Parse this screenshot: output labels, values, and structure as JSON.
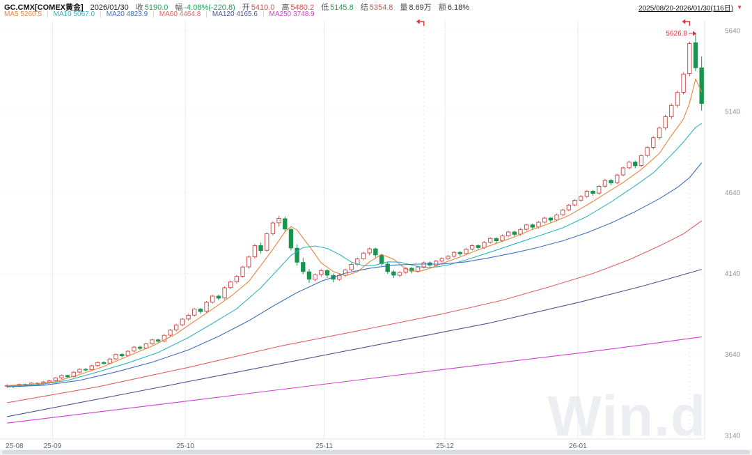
{
  "header": {
    "symbol": "GC.CMX[COMEX黄金]",
    "date": "2026/01/30",
    "stats": [
      {
        "label": "收",
        "value": "5190.0",
        "color": "#1ba554"
      },
      {
        "label": "幅",
        "value": "-4.08%(-220.8)",
        "color": "#1ba554"
      },
      {
        "label": "开",
        "value": "5410.0",
        "color": "#d94f4f"
      },
      {
        "label": "高",
        "value": "5480.2",
        "color": "#d94f4f"
      },
      {
        "label": "低",
        "value": "5145.8",
        "color": "#1ba554"
      },
      {
        "label": "结",
        "value": "5354.8",
        "color": "#d94f4f"
      },
      {
        "label": "量",
        "value": "8.69万",
        "color": "#333333"
      },
      {
        "label": "额",
        "value": "6.18%",
        "color": "#333333"
      }
    ],
    "range_selector": {
      "label": "2025/08/20-2026/01/30(116日)"
    },
    "ma_legend": [
      {
        "label": "MA5",
        "value": "5260.5",
        "color": "#e8843c"
      },
      {
        "label": "MA10",
        "value": "5067.0",
        "color": "#2fb3c4"
      },
      {
        "label": "MA20",
        "value": "4823.9",
        "color": "#3e6fbe"
      },
      {
        "label": "MA60",
        "value": "4464.8",
        "color": "#e06060"
      },
      {
        "label": "MA120",
        "value": "4165.6",
        "color": "#4a5490"
      },
      {
        "label": "MA250",
        "value": "3748.9",
        "color": "#cc3fcc"
      }
    ]
  },
  "watermark": "Win.d",
  "chart_data": {
    "type": "candlestick",
    "ylim": [
      3118,
      5700
    ],
    "y_ticks": [
      5640,
      5140,
      4640,
      4140,
      3640,
      3140
    ],
    "x_ticks": [
      {
        "index": 0,
        "label": "25-08"
      },
      {
        "index": 8,
        "label": "25-09"
      },
      {
        "index": 30,
        "label": "25-10"
      },
      {
        "index": 53,
        "label": "25-11"
      },
      {
        "index": 73,
        "label": "25-12"
      },
      {
        "index": 95,
        "label": "26-01"
      }
    ],
    "up_color": "#d0504e",
    "down_color": "#17944e",
    "grid_color": "#e7e9ec",
    "peak_annotation": {
      "text": "5626.8",
      "index": 114,
      "price": 5626.8,
      "color": "#e03030"
    },
    "rollover_marker_indices": [
      69,
      113
    ],
    "candles": [
      [
        3446,
        3456,
        3434,
        3448
      ],
      [
        3448,
        3452,
        3432,
        3442
      ],
      [
        3443,
        3460,
        3438,
        3455
      ],
      [
        3455,
        3461,
        3442,
        3450
      ],
      [
        3451,
        3469,
        3446,
        3463
      ],
      [
        3462,
        3468,
        3450,
        3458
      ],
      [
        3459,
        3476,
        3452,
        3470
      ],
      [
        3470,
        3484,
        3464,
        3478
      ],
      [
        3479,
        3500,
        3472,
        3495
      ],
      [
        3496,
        3516,
        3488,
        3510
      ],
      [
        3510,
        3515,
        3494,
        3502
      ],
      [
        3503,
        3536,
        3498,
        3530
      ],
      [
        3531,
        3554,
        3524,
        3548
      ],
      [
        3548,
        3556,
        3536,
        3545
      ],
      [
        3546,
        3576,
        3540,
        3570
      ],
      [
        3571,
        3596,
        3564,
        3590
      ],
      [
        3590,
        3597,
        3576,
        3585
      ],
      [
        3586,
        3618,
        3580,
        3612
      ],
      [
        3613,
        3646,
        3606,
        3640
      ],
      [
        3640,
        3648,
        3622,
        3632
      ],
      [
        3633,
        3666,
        3626,
        3660
      ],
      [
        3661,
        3692,
        3654,
        3685
      ],
      [
        3685,
        3694,
        3668,
        3678
      ],
      [
        3679,
        3712,
        3672,
        3705
      ],
      [
        3706,
        3737,
        3698,
        3730
      ],
      [
        3730,
        3738,
        3710,
        3722
      ],
      [
        3723,
        3765,
        3716,
        3758
      ],
      [
        3759,
        3797,
        3750,
        3790
      ],
      [
        3791,
        3829,
        3782,
        3822
      ],
      [
        3823,
        3865,
        3814,
        3858
      ],
      [
        3859,
        3890,
        3850,
        3882
      ],
      [
        3883,
        3928,
        3874,
        3920
      ],
      [
        3920,
        3928,
        3892,
        3905
      ],
      [
        3906,
        3970,
        3898,
        3962
      ],
      [
        3963,
        4008,
        3954,
        4000
      ],
      [
        4000,
        4010,
        3976,
        3988
      ],
      [
        3989,
        4060,
        3980,
        4052
      ],
      [
        4053,
        4096,
        4044,
        4088
      ],
      [
        4089,
        4130,
        4078,
        4122
      ],
      [
        4123,
        4188,
        4114,
        4180
      ],
      [
        4181,
        4250,
        4170,
        4242
      ],
      [
        4243,
        4322,
        4232,
        4312
      ],
      [
        4312,
        4330,
        4264,
        4282
      ],
      [
        4283,
        4394,
        4274,
        4385
      ],
      [
        4386,
        4462,
        4375,
        4452
      ],
      [
        4453,
        4496,
        4430,
        4480
      ],
      [
        4478,
        4492,
        4396,
        4415
      ],
      [
        4412,
        4420,
        4282,
        4298
      ],
      [
        4296,
        4320,
        4188,
        4210
      ],
      [
        4208,
        4238,
        4136,
        4152
      ],
      [
        4150,
        4168,
        4082,
        4105
      ],
      [
        4104,
        4140,
        4092,
        4132
      ],
      [
        4133,
        4168,
        4120,
        4158
      ],
      [
        4158,
        4166,
        4112,
        4130
      ],
      [
        4128,
        4140,
        4086,
        4105
      ],
      [
        4104,
        4136,
        4095,
        4128
      ],
      [
        4129,
        4170,
        4120,
        4162
      ],
      [
        4163,
        4204,
        4154,
        4196
      ],
      [
        4197,
        4238,
        4188,
        4230
      ],
      [
        4231,
        4274,
        4222,
        4266
      ],
      [
        4267,
        4300,
        4252,
        4292
      ],
      [
        4292,
        4300,
        4240,
        4255
      ],
      [
        4254,
        4262,
        4186,
        4200
      ],
      [
        4198,
        4210,
        4138,
        4152
      ],
      [
        4150,
        4162,
        4112,
        4130
      ],
      [
        4129,
        4154,
        4118,
        4146
      ],
      [
        4147,
        4180,
        4138,
        4172
      ],
      [
        4172,
        4180,
        4140,
        4155
      ],
      [
        4154,
        4188,
        4146,
        4180
      ],
      [
        4181,
        4214,
        4172,
        4206
      ],
      [
        4206,
        4214,
        4178,
        4192
      ],
      [
        4191,
        4224,
        4182,
        4216
      ],
      [
        4217,
        4240,
        4208,
        4232
      ],
      [
        4232,
        4254,
        4222,
        4246
      ],
      [
        4247,
        4278,
        4238,
        4270
      ],
      [
        4270,
        4278,
        4248,
        4262
      ],
      [
        4263,
        4298,
        4254,
        4290
      ],
      [
        4291,
        4320,
        4282,
        4312
      ],
      [
        4312,
        4320,
        4288,
        4300
      ],
      [
        4301,
        4340,
        4292,
        4332
      ],
      [
        4333,
        4364,
        4324,
        4356
      ],
      [
        4356,
        4364,
        4328,
        4342
      ],
      [
        4343,
        4380,
        4334,
        4372
      ],
      [
        4373,
        4404,
        4364,
        4396
      ],
      [
        4396,
        4404,
        4368,
        4382
      ],
      [
        4383,
        4420,
        4374,
        4412
      ],
      [
        4413,
        4448,
        4404,
        4440
      ],
      [
        4440,
        4448,
        4410,
        4426
      ],
      [
        4427,
        4464,
        4418,
        4456
      ],
      [
        4457,
        4490,
        4448,
        4482
      ],
      [
        4482,
        4490,
        4454,
        4470
      ],
      [
        4471,
        4510,
        4462,
        4502
      ],
      [
        4503,
        4540,
        4494,
        4532
      ],
      [
        4533,
        4570,
        4524,
        4562
      ],
      [
        4563,
        4600,
        4554,
        4592
      ],
      [
        4593,
        4624,
        4584,
        4615
      ],
      [
        4616,
        4656,
        4606,
        4648
      ],
      [
        4648,
        4656,
        4620,
        4635
      ],
      [
        4636,
        4686,
        4627,
        4678
      ],
      [
        4679,
        4724,
        4670,
        4715
      ],
      [
        4715,
        4724,
        4684,
        4700
      ],
      [
        4701,
        4756,
        4692,
        4748
      ],
      [
        4749,
        4800,
        4740,
        4792
      ],
      [
        4793,
        4836,
        4784,
        4828
      ],
      [
        4828,
        4836,
        4790,
        4806
      ],
      [
        4807,
        4876,
        4798,
        4868
      ],
      [
        4869,
        4926,
        4858,
        4918
      ],
      [
        4919,
        4988,
        4908,
        4978
      ],
      [
        4979,
        5048,
        4966,
        5038
      ],
      [
        5039,
        5120,
        5026,
        5108
      ],
      [
        5109,
        5190,
        5096,
        5178
      ],
      [
        5179,
        5270,
        5164,
        5258
      ],
      [
        5259,
        5384,
        5246,
        5372
      ],
      [
        5375,
        5572,
        5360,
        5560
      ],
      [
        5565,
        5626.8,
        5390,
        5410.8
      ],
      [
        5410,
        5480.2,
        5145.8,
        5190
      ]
    ],
    "ma_lines": [
      {
        "name": "MA5",
        "color": "#e8843c",
        "points": [
          [
            0,
            3448
          ],
          [
            4,
            3456
          ],
          [
            8,
            3472
          ],
          [
            12,
            3516
          ],
          [
            16,
            3566
          ],
          [
            20,
            3630
          ],
          [
            24,
            3692
          ],
          [
            28,
            3768
          ],
          [
            31,
            3845
          ],
          [
            34,
            3920
          ],
          [
            37,
            3998
          ],
          [
            40,
            4090
          ],
          [
            42,
            4190
          ],
          [
            44,
            4290
          ],
          [
            46,
            4398
          ],
          [
            47,
            4430
          ],
          [
            48,
            4408
          ],
          [
            50,
            4310
          ],
          [
            52,
            4205
          ],
          [
            54,
            4152
          ],
          [
            56,
            4126
          ],
          [
            58,
            4150
          ],
          [
            60,
            4212
          ],
          [
            62,
            4258
          ],
          [
            64,
            4228
          ],
          [
            66,
            4168
          ],
          [
            68,
            4150
          ],
          [
            70,
            4172
          ],
          [
            72,
            4202
          ],
          [
            75,
            4242
          ],
          [
            78,
            4286
          ],
          [
            81,
            4326
          ],
          [
            84,
            4366
          ],
          [
            87,
            4412
          ],
          [
            90,
            4452
          ],
          [
            93,
            4498
          ],
          [
            96,
            4562
          ],
          [
            99,
            4632
          ],
          [
            102,
            4702
          ],
          [
            105,
            4782
          ],
          [
            108,
            4882
          ],
          [
            110,
            4992
          ],
          [
            112,
            5094
          ],
          [
            113,
            5192
          ],
          [
            114,
            5342
          ],
          [
            115,
            5260.5
          ]
        ]
      },
      {
        "name": "MA10",
        "color": "#2fb3c4",
        "points": [
          [
            0,
            3444
          ],
          [
            5,
            3452
          ],
          [
            10,
            3480
          ],
          [
            15,
            3532
          ],
          [
            20,
            3588
          ],
          [
            25,
            3652
          ],
          [
            30,
            3744
          ],
          [
            34,
            3832
          ],
          [
            38,
            3922
          ],
          [
            42,
            4052
          ],
          [
            45,
            4172
          ],
          [
            47,
            4252
          ],
          [
            49,
            4300
          ],
          [
            51,
            4310
          ],
          [
            53,
            4295
          ],
          [
            55,
            4258
          ],
          [
            57,
            4210
          ],
          [
            59,
            4188
          ],
          [
            61,
            4192
          ],
          [
            63,
            4212
          ],
          [
            65,
            4210
          ],
          [
            67,
            4192
          ],
          [
            69,
            4176
          ],
          [
            71,
            4180
          ],
          [
            73,
            4192
          ],
          [
            76,
            4224
          ],
          [
            80,
            4272
          ],
          [
            84,
            4322
          ],
          [
            88,
            4372
          ],
          [
            92,
            4422
          ],
          [
            96,
            4492
          ],
          [
            100,
            4582
          ],
          [
            104,
            4682
          ],
          [
            107,
            4762
          ],
          [
            110,
            4872
          ],
          [
            112,
            4952
          ],
          [
            113,
            4998
          ],
          [
            114,
            5042
          ],
          [
            115,
            5067
          ]
        ]
      },
      {
        "name": "MA20",
        "color": "#3e6fbe",
        "points": [
          [
            0,
            3440
          ],
          [
            6,
            3450
          ],
          [
            12,
            3480
          ],
          [
            18,
            3532
          ],
          [
            24,
            3592
          ],
          [
            30,
            3668
          ],
          [
            35,
            3752
          ],
          [
            40,
            3848
          ],
          [
            44,
            3938
          ],
          [
            48,
            4022
          ],
          [
            52,
            4092
          ],
          [
            56,
            4142
          ],
          [
            60,
            4172
          ],
          [
            64,
            4192
          ],
          [
            68,
            4198
          ],
          [
            72,
            4198
          ],
          [
            76,
            4212
          ],
          [
            80,
            4238
          ],
          [
            84,
            4268
          ],
          [
            88,
            4302
          ],
          [
            92,
            4342
          ],
          [
            96,
            4392
          ],
          [
            100,
            4452
          ],
          [
            104,
            4522
          ],
          [
            108,
            4602
          ],
          [
            111,
            4672
          ],
          [
            113,
            4732
          ],
          [
            115,
            4823.9
          ]
        ]
      },
      {
        "name": "MA60",
        "color": "#e06060",
        "points": [
          [
            0,
            3342
          ],
          [
            15,
            3440
          ],
          [
            30,
            3560
          ],
          [
            45,
            3690
          ],
          [
            60,
            3800
          ],
          [
            72,
            3890
          ],
          [
            82,
            3975
          ],
          [
            90,
            4060
          ],
          [
            97,
            4140
          ],
          [
            103,
            4225
          ],
          [
            108,
            4310
          ],
          [
            112,
            4385
          ],
          [
            115,
            4464.8
          ]
        ]
      },
      {
        "name": "MA120",
        "color": "#4a5490",
        "points": [
          [
            0,
            3256
          ],
          [
            20,
            3400
          ],
          [
            40,
            3545
          ],
          [
            60,
            3690
          ],
          [
            80,
            3835
          ],
          [
            95,
            3965
          ],
          [
            105,
            4060
          ],
          [
            110,
            4112
          ],
          [
            115,
            4165.6
          ]
        ]
      },
      {
        "name": "MA250",
        "color": "#cc3fcc",
        "points": [
          [
            0,
            3216
          ],
          [
            25,
            3330
          ],
          [
            50,
            3445
          ],
          [
            75,
            3560
          ],
          [
            95,
            3650
          ],
          [
            105,
            3698
          ],
          [
            115,
            3748.9
          ]
        ]
      }
    ]
  }
}
